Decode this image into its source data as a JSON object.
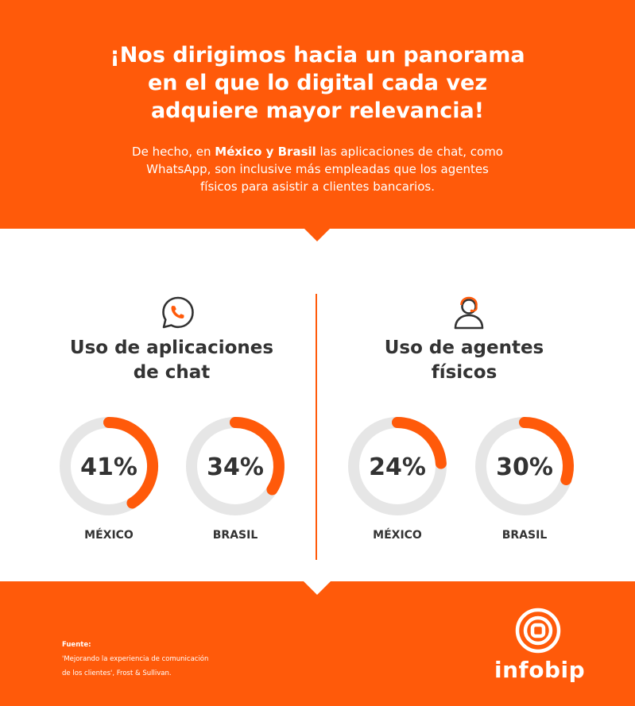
{
  "header": {
    "headline_lines": [
      "¡Nos dirigimos hacia un panorama",
      "en el que lo digital cada vez",
      "adquiere mayor relevancia!"
    ],
    "sub_line1_before": "De hecho, en ",
    "sub_line1_bold": "México y Brasil",
    "sub_line1_after": " las aplicaciones de chat, como",
    "sub_line2": "WhatsApp, son inclusive más empleadas que los agentes",
    "sub_line3": "físicos para asistir a clientes bancarios."
  },
  "columns": [
    {
      "icon": "whatsapp-chat-icon",
      "title_lines": [
        "Uso de aplicaciones",
        "de chat"
      ]
    },
    {
      "icon": "support-agent-icon",
      "title_lines": [
        "Uso de agentes",
        "físicos"
      ]
    }
  ],
  "chart_data": [
    {
      "type": "pie",
      "title": "Uso de aplicaciones de chat",
      "categories": [
        "MÉXICO",
        "BRASIL"
      ],
      "values": [
        41,
        34
      ],
      "value_labels": [
        "41%",
        "34%"
      ],
      "unit": "%"
    },
    {
      "type": "pie",
      "title": "Uso de agentes físicos",
      "categories": [
        "MÉXICO",
        "BRASIL"
      ],
      "values": [
        24,
        30
      ],
      "value_labels": [
        "24%",
        "30%"
      ],
      "unit": "%"
    }
  ],
  "colors": {
    "accent": "#ff5a0a",
    "track": "#e6e6e6",
    "text_dark": "#333333",
    "white": "#ffffff"
  },
  "footer": {
    "source_label": "Fuente:",
    "source_line1": "'Mejorando la experiencia de comunicación",
    "source_line2": "de los clientes', Frost & Sullivan.",
    "logo_text": "infobip"
  }
}
